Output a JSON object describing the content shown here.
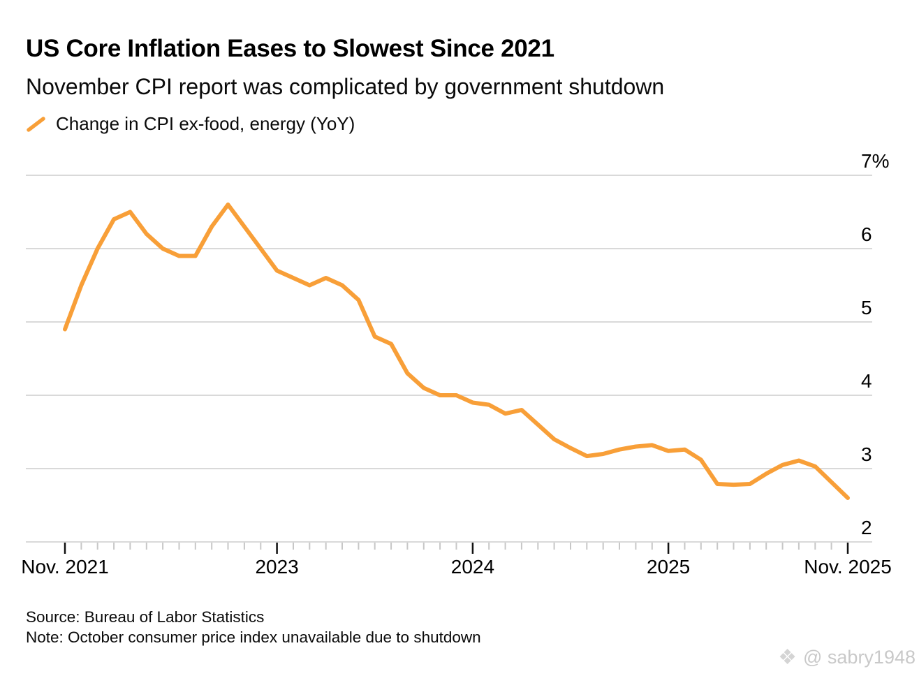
{
  "header": {
    "title": "US Core Inflation Eases to Slowest Since 2021",
    "subtitle": "November CPI report was complicated by government shutdown"
  },
  "legend": {
    "label": "Change in CPI ex-food, energy (YoY)",
    "marker": "orange-slash"
  },
  "chart_data": {
    "type": "line",
    "title": "US Core Inflation Eases to Slowest Since 2021",
    "series_name": "Change in CPI ex-food, energy (YoY)",
    "unit": "percent YoY",
    "grid": true,
    "legend_position": "top-left",
    "line_color": "#F89F38",
    "ylim": [
      2,
      7
    ],
    "x": [
      "2021-11",
      "2021-12",
      "2022-01",
      "2022-02",
      "2022-03",
      "2022-04",
      "2022-05",
      "2022-06",
      "2022-07",
      "2022-08",
      "2022-09",
      "2022-10",
      "2022-11",
      "2022-12",
      "2023-01",
      "2023-02",
      "2023-03",
      "2023-04",
      "2023-05",
      "2023-06",
      "2023-07",
      "2023-08",
      "2023-09",
      "2023-10",
      "2023-11",
      "2023-12",
      "2024-01",
      "2024-02",
      "2024-03",
      "2024-04",
      "2024-05",
      "2024-06",
      "2024-07",
      "2024-08",
      "2024-09",
      "2024-10",
      "2024-11",
      "2024-12",
      "2025-01",
      "2025-02",
      "2025-03",
      "2025-04",
      "2025-05",
      "2025-06",
      "2025-07",
      "2025-08",
      "2025-09",
      "2025-10",
      "2025-11"
    ],
    "values": [
      4.9,
      5.5,
      6.0,
      6.4,
      6.5,
      6.2,
      6.0,
      5.9,
      5.9,
      6.3,
      6.6,
      6.3,
      6.0,
      5.7,
      5.6,
      5.5,
      5.6,
      5.5,
      5.3,
      4.8,
      4.7,
      4.3,
      4.1,
      4.0,
      4.0,
      3.9,
      3.87,
      3.75,
      3.8,
      3.6,
      3.4,
      3.28,
      3.17,
      3.2,
      3.26,
      3.3,
      3.32,
      3.24,
      3.26,
      3.12,
      2.79,
      2.78,
      2.79,
      2.93,
      3.05,
      3.11,
      3.03,
      null,
      2.6
    ],
    "missing": [
      "2025-10"
    ],
    "y_ticks": [
      {
        "label": "7%",
        "value": 7
      },
      {
        "label": "6",
        "value": 6
      },
      {
        "label": "5",
        "value": 5
      },
      {
        "label": "4",
        "value": 4
      },
      {
        "label": "3",
        "value": 3
      },
      {
        "label": "2",
        "value": 2
      }
    ],
    "x_ticks": [
      {
        "label": "Nov. 2021",
        "index": 0
      },
      {
        "label": "2023",
        "index": 13
      },
      {
        "label": "2024",
        "index": 25
      },
      {
        "label": "2025",
        "index": 37
      },
      {
        "label": "Nov. 2025",
        "index": 48
      }
    ]
  },
  "footer": {
    "source": "Source: Bureau of Labor Statistics",
    "note": "Note: October consumer price index unavailable due to shutdown"
  },
  "watermark": {
    "icon": "❖",
    "text": "@ sabry1948"
  }
}
